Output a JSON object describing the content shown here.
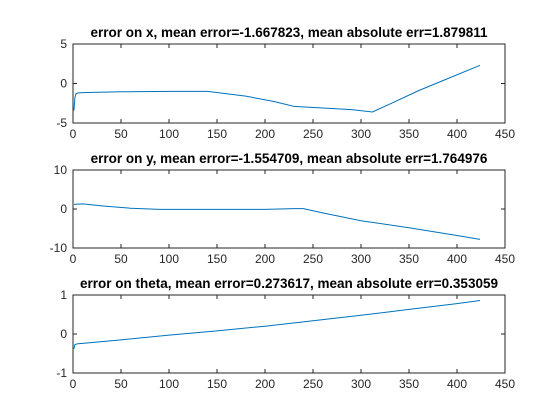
{
  "chart_data": [
    {
      "type": "line",
      "title": "error on x, mean error=-1.667823, mean absolute err=1.879811",
      "xlim": [
        0,
        450
      ],
      "ylim": [
        -5,
        5
      ],
      "xticks": [
        0,
        50,
        100,
        150,
        200,
        250,
        300,
        350,
        400,
        450
      ],
      "yticks": [
        -5,
        0,
        5
      ],
      "color": "#0072BD",
      "series": [
        {
          "x": [
            1,
            2,
            3,
            5,
            10,
            50,
            100,
            140,
            180,
            210,
            230,
            260,
            290,
            312,
            330,
            360,
            390,
            424
          ],
          "y": [
            -3.4,
            -1.8,
            -1.3,
            -1.2,
            -1.15,
            -1.05,
            -1.0,
            -1.0,
            -1.6,
            -2.3,
            -2.9,
            -3.1,
            -3.3,
            -3.6,
            -2.6,
            -0.9,
            0.6,
            2.3
          ]
        }
      ]
    },
    {
      "type": "line",
      "title": "error on y, mean error=-1.554709, mean absolute err=1.764976",
      "xlim": [
        0,
        450
      ],
      "ylim": [
        -10,
        10
      ],
      "xticks": [
        0,
        50,
        100,
        150,
        200,
        250,
        300,
        350,
        400,
        450
      ],
      "yticks": [
        -10,
        0,
        10
      ],
      "color": "#0072BD",
      "series": [
        {
          "x": [
            1,
            10,
            30,
            60,
            90,
            150,
            200,
            230,
            240,
            260,
            300,
            350,
            400,
            424
          ],
          "y": [
            1.2,
            1.3,
            0.8,
            0.2,
            -0.1,
            -0.1,
            -0.1,
            0.1,
            0.1,
            -1.0,
            -3.0,
            -4.8,
            -6.8,
            -7.8
          ]
        }
      ]
    },
    {
      "type": "line",
      "title": "error on theta, mean error=0.273617, mean absolute err=0.353059",
      "xlim": [
        0,
        450
      ],
      "ylim": [
        -1,
        1
      ],
      "xticks": [
        0,
        50,
        100,
        150,
        200,
        250,
        300,
        350,
        400,
        450
      ],
      "yticks": [
        -1,
        0,
        1
      ],
      "color": "#0072BD",
      "series": [
        {
          "x": [
            1,
            2,
            5,
            10,
            50,
            100,
            150,
            200,
            250,
            300,
            350,
            400,
            424
          ],
          "y": [
            -0.38,
            -0.27,
            -0.25,
            -0.24,
            -0.15,
            -0.03,
            0.08,
            0.2,
            0.34,
            0.48,
            0.63,
            0.78,
            0.86
          ]
        }
      ]
    }
  ]
}
